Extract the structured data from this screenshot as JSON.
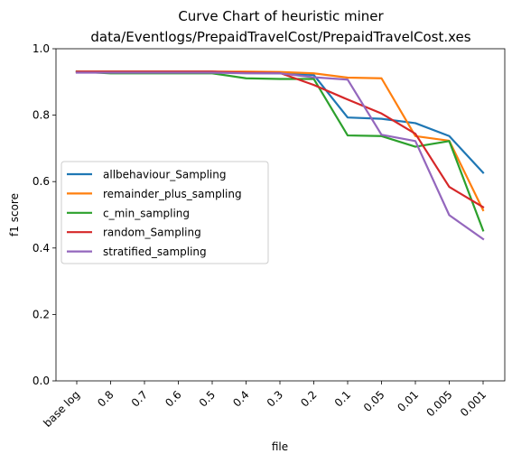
{
  "chart_data": {
    "type": "line",
    "title": "Curve Chart of heuristic miner",
    "subtitle": "data/Eventlogs/PrepaidTravelCost/PrepaidTravelCost.xes",
    "xlabel": "file",
    "ylabel": "f1 score",
    "ylim": [
      0,
      1.0
    ],
    "yticks": [
      "0.0",
      "0.2",
      "0.4",
      "0.6",
      "0.8",
      "1.0"
    ],
    "categories": [
      "base log",
      "0.8",
      "0.7",
      "0.6",
      "0.5",
      "0.4",
      "0.3",
      "0.2",
      "0.1",
      "0.05",
      "0.01",
      "0.005",
      "0.001"
    ],
    "grid": false,
    "legend_position": "center-left",
    "series": [
      {
        "name": "allbehaviour_Sampling",
        "color": "#1f77b4",
        "values": [
          0.931,
          0.931,
          0.931,
          0.931,
          0.931,
          0.927,
          0.926,
          0.921,
          0.793,
          0.789,
          0.776,
          0.737,
          0.627
        ]
      },
      {
        "name": "remainder_plus_sampling",
        "color": "#ff7f0e",
        "values": [
          0.931,
          0.931,
          0.931,
          0.931,
          0.931,
          0.931,
          0.93,
          0.926,
          0.913,
          0.911,
          0.737,
          0.723,
          0.514
        ]
      },
      {
        "name": "c_min_sampling",
        "color": "#2ca02c",
        "values": [
          0.931,
          0.926,
          0.926,
          0.926,
          0.926,
          0.911,
          0.909,
          0.909,
          0.739,
          0.737,
          0.705,
          0.722,
          0.453
        ]
      },
      {
        "name": "random_Sampling",
        "color": "#d62728",
        "values": [
          0.931,
          0.931,
          0.931,
          0.931,
          0.931,
          0.928,
          0.927,
          0.891,
          0.847,
          0.805,
          0.744,
          0.584,
          0.523
        ]
      },
      {
        "name": "stratified_sampling",
        "color": "#9467bd",
        "values": [
          0.928,
          0.928,
          0.928,
          0.928,
          0.928,
          0.926,
          0.926,
          0.914,
          0.907,
          0.741,
          0.722,
          0.499,
          0.427
        ]
      }
    ]
  }
}
